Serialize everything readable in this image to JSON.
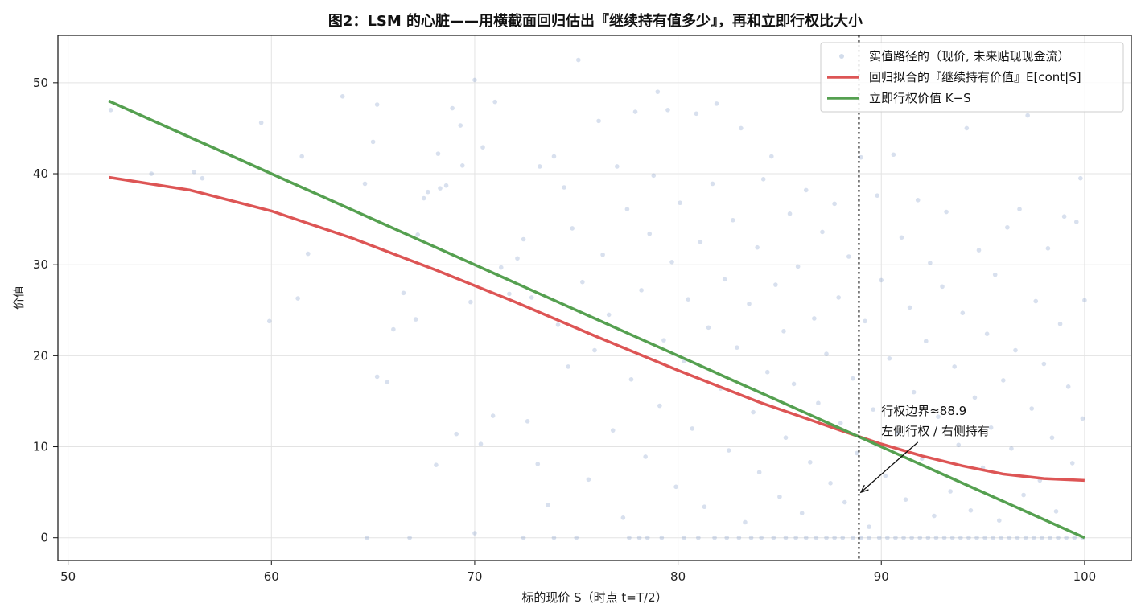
{
  "chart_data": {
    "type": "scatter",
    "title": "图2：LSM 的心脏——用横截面回归估出『继续持有值多少』，再和立即行权比大小",
    "xlabel": "标的现价 S（时点 t=T/2）",
    "ylabel": "价值",
    "xlim": [
      49.5,
      102.3
    ],
    "ylim": [
      -2.5,
      55.2
    ],
    "xticks": [
      "50",
      "60",
      "70",
      "80",
      "90",
      "100"
    ],
    "yticks": [
      "0",
      "10",
      "20",
      "30",
      "40",
      "50"
    ],
    "grid": true,
    "legend_position": "top-right",
    "strike": 100,
    "boundary_x": 88.9,
    "colors": {
      "scatter": "#4c72b0",
      "regression": "#dd5555",
      "exercise": "#55a050",
      "boundary": "#111111"
    },
    "series": [
      {
        "name": "实值路径的（现价, 未来贴现现金流）",
        "kind": "scatter",
        "points": [
          [
            52.1,
            47.0
          ],
          [
            54.1,
            40.0
          ],
          [
            56.2,
            40.2
          ],
          [
            56.6,
            39.5
          ],
          [
            59.5,
            45.6
          ],
          [
            59.9,
            23.8
          ],
          [
            61.3,
            26.3
          ],
          [
            61.5,
            41.9
          ],
          [
            61.8,
            31.2
          ],
          [
            63.5,
            48.5
          ],
          [
            64.6,
            38.9
          ],
          [
            65.0,
            43.5
          ],
          [
            65.2,
            47.6
          ],
          [
            65.2,
            17.7
          ],
          [
            65.7,
            17.1
          ],
          [
            66.0,
            22.9
          ],
          [
            66.5,
            26.9
          ],
          [
            67.1,
            24.0
          ],
          [
            67.2,
            33.3
          ],
          [
            67.5,
            37.3
          ],
          [
            67.7,
            38.0
          ],
          [
            68.1,
            8.0
          ],
          [
            68.2,
            42.2
          ],
          [
            68.3,
            38.4
          ],
          [
            68.6,
            38.7
          ],
          [
            68.9,
            47.2
          ],
          [
            69.1,
            11.4
          ],
          [
            69.3,
            45.3
          ],
          [
            69.4,
            40.9
          ],
          [
            69.8,
            25.9
          ],
          [
            70.0,
            50.3
          ],
          [
            70.0,
            0.5
          ],
          [
            70.3,
            10.3
          ],
          [
            70.4,
            42.9
          ],
          [
            70.9,
            13.4
          ],
          [
            71.0,
            47.9
          ],
          [
            71.3,
            29.7
          ],
          [
            71.7,
            26.8
          ],
          [
            72.1,
            30.7
          ],
          [
            72.4,
            32.8
          ],
          [
            72.6,
            12.8
          ],
          [
            72.8,
            26.4
          ],
          [
            73.1,
            8.1
          ],
          [
            73.2,
            40.8
          ],
          [
            73.6,
            3.6
          ],
          [
            73.9,
            41.9
          ],
          [
            74.1,
            23.4
          ],
          [
            74.4,
            38.5
          ],
          [
            74.6,
            18.8
          ],
          [
            74.8,
            34.0
          ],
          [
            75.1,
            52.5
          ],
          [
            75.3,
            28.1
          ],
          [
            75.6,
            6.4
          ],
          [
            75.9,
            20.6
          ],
          [
            76.1,
            45.8
          ],
          [
            76.3,
            31.1
          ],
          [
            76.6,
            24.5
          ],
          [
            76.8,
            11.8
          ],
          [
            77.0,
            40.8
          ],
          [
            77.3,
            2.2
          ],
          [
            77.5,
            36.1
          ],
          [
            77.7,
            17.4
          ],
          [
            77.9,
            46.8
          ],
          [
            78.2,
            27.2
          ],
          [
            78.4,
            8.9
          ],
          [
            78.6,
            33.4
          ],
          [
            78.8,
            39.8
          ],
          [
            79.0,
            49.0
          ],
          [
            79.1,
            14.5
          ],
          [
            79.3,
            21.7
          ],
          [
            79.5,
            47.0
          ],
          [
            79.7,
            30.3
          ],
          [
            79.9,
            5.6
          ],
          [
            80.1,
            36.8
          ],
          [
            80.3,
            19.4
          ],
          [
            80.5,
            26.2
          ],
          [
            80.7,
            12.0
          ],
          [
            80.9,
            46.6
          ],
          [
            81.1,
            32.5
          ],
          [
            81.3,
            3.4
          ],
          [
            81.5,
            23.1
          ],
          [
            81.7,
            38.9
          ],
          [
            81.9,
            47.7
          ],
          [
            82.1,
            16.4
          ],
          [
            82.3,
            28.4
          ],
          [
            82.5,
            9.6
          ],
          [
            82.7,
            34.9
          ],
          [
            82.9,
            20.9
          ],
          [
            83.1,
            45.0
          ],
          [
            83.3,
            1.7
          ],
          [
            83.5,
            25.7
          ],
          [
            83.7,
            13.8
          ],
          [
            83.9,
            31.9
          ],
          [
            84.0,
            7.2
          ],
          [
            84.2,
            39.4
          ],
          [
            84.4,
            18.2
          ],
          [
            84.6,
            41.9
          ],
          [
            84.8,
            27.8
          ],
          [
            85.0,
            4.5
          ],
          [
            85.2,
            22.7
          ],
          [
            85.3,
            11.0
          ],
          [
            85.5,
            35.6
          ],
          [
            85.7,
            16.9
          ],
          [
            85.9,
            29.8
          ],
          [
            86.1,
            2.7
          ],
          [
            86.3,
            38.2
          ],
          [
            86.5,
            8.3
          ],
          [
            86.7,
            24.1
          ],
          [
            86.9,
            14.8
          ],
          [
            87.1,
            33.6
          ],
          [
            87.3,
            20.2
          ],
          [
            87.5,
            6.0
          ],
          [
            87.7,
            36.7
          ],
          [
            87.9,
            26.4
          ],
          [
            88.0,
            12.6
          ],
          [
            88.2,
            3.9
          ],
          [
            88.4,
            30.9
          ],
          [
            88.6,
            17.5
          ],
          [
            88.8,
            9.3
          ],
          [
            89.0,
            41.8
          ],
          [
            89.2,
            23.8
          ],
          [
            89.4,
            1.2
          ],
          [
            89.6,
            14.1
          ],
          [
            89.8,
            37.6
          ],
          [
            90.0,
            28.3
          ],
          [
            90.2,
            6.8
          ],
          [
            90.4,
            19.7
          ],
          [
            90.6,
            42.1
          ],
          [
            90.8,
            11.5
          ],
          [
            91.0,
            33.0
          ],
          [
            91.2,
            4.2
          ],
          [
            91.4,
            25.3
          ],
          [
            91.6,
            16.0
          ],
          [
            91.8,
            37.1
          ],
          [
            92.0,
            8.7
          ],
          [
            92.2,
            21.6
          ],
          [
            92.4,
            30.2
          ],
          [
            92.6,
            2.4
          ],
          [
            92.8,
            13.3
          ],
          [
            93.0,
            27.6
          ],
          [
            93.2,
            35.8
          ],
          [
            93.4,
            5.1
          ],
          [
            93.6,
            18.8
          ],
          [
            93.8,
            10.2
          ],
          [
            94.0,
            24.7
          ],
          [
            94.2,
            45.0
          ],
          [
            94.4,
            3.0
          ],
          [
            94.6,
            15.4
          ],
          [
            94.8,
            31.6
          ],
          [
            95.0,
            7.7
          ],
          [
            95.2,
            22.4
          ],
          [
            95.4,
            12.1
          ],
          [
            95.6,
            28.9
          ],
          [
            95.8,
            1.9
          ],
          [
            96.0,
            17.3
          ],
          [
            96.2,
            34.1
          ],
          [
            96.4,
            9.8
          ],
          [
            96.6,
            20.6
          ],
          [
            96.8,
            36.1
          ],
          [
            97.0,
            4.7
          ],
          [
            97.2,
            46.4
          ],
          [
            97.4,
            14.2
          ],
          [
            97.6,
            26.0
          ],
          [
            97.8,
            6.3
          ],
          [
            98.0,
            19.1
          ],
          [
            98.2,
            31.8
          ],
          [
            98.4,
            11.0
          ],
          [
            98.6,
            2.9
          ],
          [
            98.8,
            23.5
          ],
          [
            99.0,
            35.3
          ],
          [
            99.2,
            16.6
          ],
          [
            99.4,
            8.2
          ],
          [
            99.6,
            34.7
          ],
          [
            99.8,
            39.5
          ],
          [
            99.9,
            13.1
          ],
          [
            100.0,
            26.1
          ],
          [
            64.7,
            0.0
          ],
          [
            66.8,
            0.0
          ],
          [
            72.4,
            0.0
          ],
          [
            73.9,
            0.0
          ],
          [
            75.0,
            0.0
          ],
          [
            77.6,
            0.0
          ],
          [
            78.1,
            0.0
          ],
          [
            78.5,
            0.0
          ],
          [
            79.2,
            0.0
          ],
          [
            80.3,
            0.0
          ],
          [
            81.0,
            0.0
          ],
          [
            81.8,
            0.0
          ],
          [
            82.4,
            0.0
          ],
          [
            83.0,
            0.0
          ],
          [
            83.6,
            0.0
          ],
          [
            84.1,
            0.0
          ],
          [
            84.7,
            0.0
          ],
          [
            85.3,
            0.0
          ],
          [
            85.8,
            0.0
          ],
          [
            86.3,
            0.0
          ],
          [
            86.8,
            0.0
          ],
          [
            87.3,
            0.0
          ],
          [
            87.7,
            0.0
          ],
          [
            88.1,
            0.0
          ],
          [
            88.6,
            0.0
          ],
          [
            89.0,
            0.0
          ],
          [
            89.4,
            0.0
          ],
          [
            89.9,
            0.0
          ],
          [
            90.3,
            0.0
          ],
          [
            90.7,
            0.0
          ],
          [
            91.1,
            0.0
          ],
          [
            91.5,
            0.0
          ],
          [
            91.9,
            0.0
          ],
          [
            92.3,
            0.0
          ],
          [
            92.7,
            0.0
          ],
          [
            93.1,
            0.0
          ],
          [
            93.5,
            0.0
          ],
          [
            93.9,
            0.0
          ],
          [
            94.3,
            0.0
          ],
          [
            94.7,
            0.0
          ],
          [
            95.1,
            0.0
          ],
          [
            95.5,
            0.0
          ],
          [
            95.9,
            0.0
          ],
          [
            96.3,
            0.0
          ],
          [
            96.7,
            0.0
          ],
          [
            97.1,
            0.0
          ],
          [
            97.5,
            0.0
          ],
          [
            97.9,
            0.0
          ],
          [
            98.3,
            0.0
          ],
          [
            98.7,
            0.0
          ],
          [
            99.1,
            0.0
          ],
          [
            99.5,
            0.0
          ],
          [
            99.9,
            0.0
          ]
        ]
      },
      {
        "name": "回归拟合的『继续持有价值』E[cont|S]",
        "kind": "line",
        "x": [
          52,
          56,
          60,
          64,
          68,
          72,
          76,
          80,
          84,
          88,
          90,
          92,
          94,
          96,
          98,
          100
        ],
        "values": [
          39.6,
          38.2,
          35.9,
          32.9,
          29.5,
          25.9,
          22.1,
          18.4,
          14.9,
          11.8,
          10.3,
          9.0,
          7.9,
          7.0,
          6.5,
          6.3
        ]
      },
      {
        "name": "立即行权价值 K−S",
        "kind": "line",
        "x": [
          52,
          100
        ],
        "values": [
          48.0,
          0.0
        ]
      }
    ],
    "annotation": {
      "line1": "行权边界≈88.9",
      "line2": "左侧行权 / 右侧持有",
      "text_x": 90.0,
      "text_y": 13.5,
      "arrow_from_x": 91.8,
      "arrow_from_y": 10.5,
      "arrow_to_x": 89.0,
      "arrow_to_y": 5.0
    }
  }
}
